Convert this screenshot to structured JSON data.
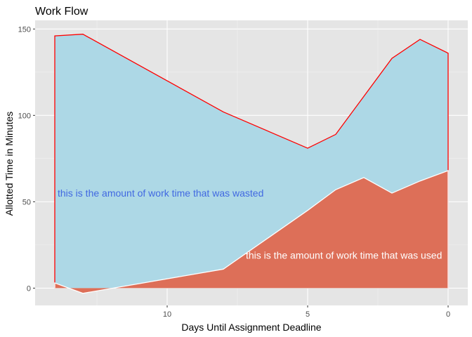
{
  "chart_data": {
    "type": "area",
    "title": "Work Flow",
    "xlabel": "Days Until Assignment Deadline",
    "ylabel": "Allotted Time in Minutes",
    "x_reversed": true,
    "xlim": [
      14.7,
      -0.7
    ],
    "ylim": [
      -10,
      155
    ],
    "x_ticks": [
      10,
      5,
      0
    ],
    "x_tick_labels": [
      "10",
      "5",
      "0"
    ],
    "y_ticks": [
      0,
      50,
      100,
      150
    ],
    "y_tick_labels": [
      "0",
      "50",
      "100",
      "150"
    ],
    "grid": true,
    "series": [
      {
        "role": "allotted",
        "fill": "#add8e6",
        "stroke": "#ff0000",
        "points": [
          {
            "x": 14,
            "y": 146
          },
          {
            "x": 13,
            "y": 147
          },
          {
            "x": 8,
            "y": 102
          },
          {
            "x": 5,
            "y": 81
          },
          {
            "x": 4,
            "y": 89
          },
          {
            "x": 2,
            "y": 133
          },
          {
            "x": 1,
            "y": 144
          },
          {
            "x": 0,
            "y": 136
          }
        ]
      },
      {
        "role": "used",
        "fill": "#dd6f58",
        "stroke": "#ffffff",
        "points": [
          {
            "x": 14,
            "y": 3
          },
          {
            "x": 13,
            "y": -3
          },
          {
            "x": 8,
            "y": 11
          },
          {
            "x": 5,
            "y": 45
          },
          {
            "x": 4,
            "y": 57
          },
          {
            "x": 3,
            "y": 64
          },
          {
            "x": 2,
            "y": 55
          },
          {
            "x": 1,
            "y": 62
          },
          {
            "x": 0,
            "y": 68
          }
        ]
      }
    ],
    "annotations": [
      {
        "text": "this is the amount of work time that was wasted",
        "x": 13.9,
        "y": 55,
        "color": "#4169e1",
        "anchor": "start"
      },
      {
        "text": "this is the amount of work time that was used",
        "x": 7.2,
        "y": 19,
        "color": "#ffffff",
        "anchor": "start"
      }
    ]
  }
}
